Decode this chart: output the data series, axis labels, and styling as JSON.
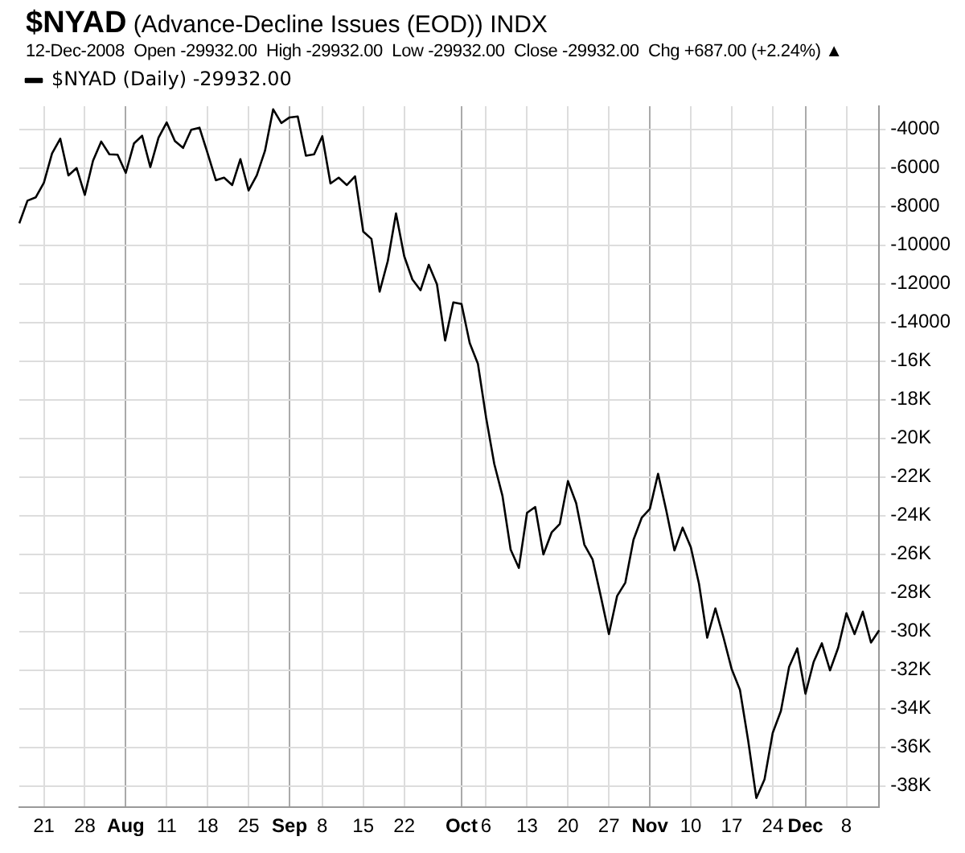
{
  "chart_data": {
    "type": "line",
    "title": "$NYAD (Advance-Decline Issues (EOD)) INDX",
    "subtitle": "12-Dec-2008  Open -29932.00  High -29932.00  Low -29932.00  Close -29932.00  Chg +687.00 (+2.24%) ▲",
    "categories": [
      null,
      null,
      null,
      "21",
      null,
      null,
      null,
      null,
      "28",
      null,
      null,
      null,
      null,
      "Aug",
      null,
      null,
      null,
      null,
      "11",
      null,
      null,
      null,
      null,
      "18",
      null,
      null,
      null,
      null,
      "25",
      null,
      null,
      null,
      null,
      "Sep",
      null,
      null,
      null,
      "8",
      null,
      null,
      null,
      null,
      "15",
      null,
      null,
      null,
      null,
      "22",
      null,
      null,
      null,
      null,
      null,
      null,
      "Oct",
      null,
      null,
      "6",
      null,
      null,
      null,
      null,
      "13",
      null,
      null,
      null,
      null,
      "20",
      null,
      null,
      null,
      null,
      "27",
      null,
      null,
      null,
      null,
      "Nov",
      null,
      null,
      null,
      null,
      "10",
      null,
      null,
      null,
      null,
      "17",
      null,
      null,
      null,
      null,
      "24",
      null,
      null,
      null,
      "Dec",
      null,
      null,
      null,
      null,
      "8",
      null,
      null,
      null,
      null
    ],
    "series": [
      {
        "name": "$NYAD (Daily) -29932.00",
        "color": "#000000",
        "values": [
          -8860,
          -7690,
          -7520,
          -6760,
          -5240,
          -4480,
          -6380,
          -6000,
          -7390,
          -5620,
          -4630,
          -5290,
          -5310,
          -6250,
          -4730,
          -4330,
          -5950,
          -4430,
          -3640,
          -4600,
          -4960,
          -4020,
          -3910,
          -5240,
          -6630,
          -6500,
          -6880,
          -5540,
          -7160,
          -6380,
          -5110,
          -2960,
          -3670,
          -3380,
          -3330,
          -5360,
          -5290,
          -4350,
          -6800,
          -6500,
          -6880,
          -6430,
          -9290,
          -9670,
          -12400,
          -10810,
          -8350,
          -10560,
          -11770,
          -12330,
          -11010,
          -12020,
          -14930,
          -12960,
          -13040,
          -15060,
          -16130,
          -18920,
          -21320,
          -22970,
          -25760,
          -26710,
          -23850,
          -23550,
          -26010,
          -24870,
          -24430,
          -22210,
          -23350,
          -25500,
          -26260,
          -28160,
          -30130,
          -28160,
          -27470,
          -25250,
          -24110,
          -23650,
          -21830,
          -23730,
          -25800,
          -24620,
          -25630,
          -27530,
          -30320,
          -28800,
          -30320,
          -31960,
          -33020,
          -35630,
          -38620,
          -37650,
          -35250,
          -34110,
          -31830,
          -30870,
          -33220,
          -31570,
          -30610,
          -32010,
          -30830,
          -29050,
          -30130,
          -28970,
          -30570,
          -29932
        ]
      }
    ],
    "ylim": [
      -39100,
      -2800
    ],
    "yticks": [
      -4000,
      -6000,
      -8000,
      -10000,
      -12000,
      -14000,
      {
        "value": -16000,
        "label": "-16K"
      },
      {
        "value": -18000,
        "label": "-18K"
      },
      {
        "value": -20000,
        "label": "-20K"
      },
      {
        "value": -22000,
        "label": "-22K"
      },
      {
        "value": -24000,
        "label": "-24K"
      },
      {
        "value": -26000,
        "label": "-26K"
      },
      {
        "value": -28000,
        "label": "-28K"
      },
      {
        "value": -30000,
        "label": "-30K"
      },
      {
        "value": -32000,
        "label": "-32K"
      },
      {
        "value": -34000,
        "label": "-34K"
      },
      {
        "value": -36000,
        "label": "-36K"
      },
      {
        "value": -38000,
        "label": "-38K"
      }
    ],
    "grid": true,
    "legend": "top left",
    "marker": "none",
    "line_style": "solid"
  }
}
